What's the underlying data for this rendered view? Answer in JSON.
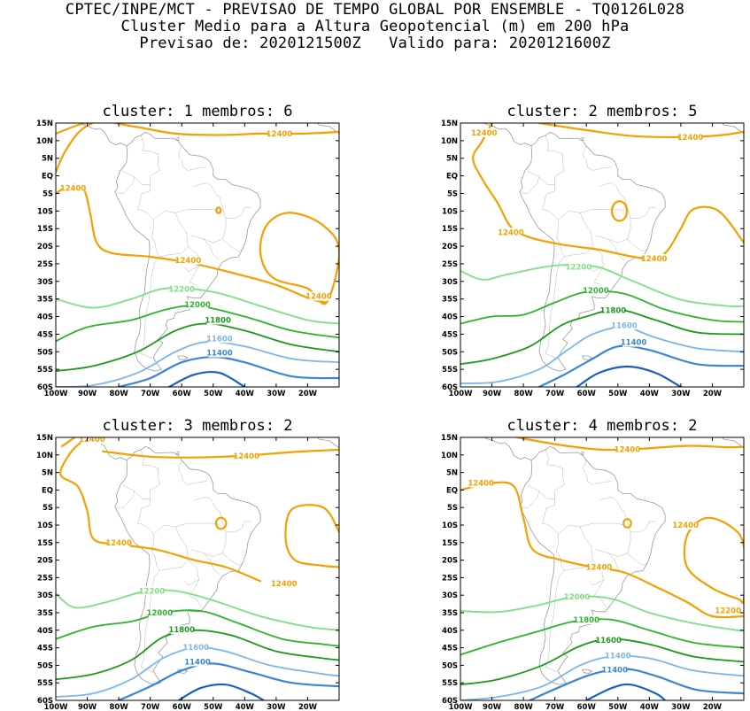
{
  "header": {
    "line1": "CPTEC/INPE/MCT - PREVISAO DE TEMPO GLOBAL POR ENSEMBLE - TQ0126L028",
    "line2": "Cluster Medio para a Altura Geopotencial (m) em 200 hPa",
    "line3": "Previsao de: 2020121500Z   Valido para: 2020121600Z"
  },
  "colors": {
    "12400": "#f5a000",
    "12200": "#7ee07e",
    "12000": "#2ab52a",
    "11800": "#1a9a1a",
    "11600": "#7ab6ee",
    "11400": "#3a86d6",
    "11200": "#1a5fc0"
  },
  "chart_data": [
    {
      "type": "contour",
      "title": "cluster: 1   membros: 6",
      "x_ticks": [
        "100W",
        "90W",
        "80W",
        "70W",
        "60W",
        "50W",
        "40W",
        "30W",
        "20W"
      ],
      "y_ticks": [
        "15N",
        "10N",
        "5N",
        "EQ",
        "5S",
        "10S",
        "15S",
        "20S",
        "25S",
        "30S",
        "35S",
        "40S",
        "45S",
        "50S",
        "55S",
        "60S"
      ],
      "xlim": [
        -100,
        -10
      ],
      "ylim": [
        -60,
        15
      ],
      "contour_labels": [
        "12400",
        "12400",
        "12400",
        "12400",
        "12200",
        "12000",
        "11800",
        "11600",
        "11400"
      ]
    },
    {
      "type": "contour",
      "title": "cluster: 2   membros: 5",
      "x_ticks": [
        "100W",
        "90W",
        "80W",
        "70W",
        "60W",
        "50W",
        "40W",
        "30W",
        "20W"
      ],
      "y_ticks": [
        "15N",
        "10N",
        "5N",
        "EQ",
        "5S",
        "10S",
        "15S",
        "20S",
        "25S",
        "30S",
        "35S",
        "40S",
        "45S",
        "50S",
        "55S",
        "60S"
      ],
      "xlim": [
        -100,
        -10
      ],
      "ylim": [
        -60,
        15
      ],
      "contour_labels": [
        "12400",
        "12400",
        "12400",
        "12400",
        "12200",
        "12000",
        "11800",
        "11600",
        "11400"
      ]
    },
    {
      "type": "contour",
      "title": "cluster: 3   membros: 2",
      "x_ticks": [
        "100W",
        "90W",
        "80W",
        "70W",
        "60W",
        "50W",
        "40W",
        "30W",
        "20W"
      ],
      "y_ticks": [
        "15N",
        "10N",
        "5N",
        "EQ",
        "5S",
        "10S",
        "15S",
        "20S",
        "25S",
        "30S",
        "35S",
        "40S",
        "45S",
        "50S",
        "55S",
        "60S"
      ],
      "xlim": [
        -100,
        -10
      ],
      "ylim": [
        -60,
        15
      ],
      "contour_labels": [
        "12400",
        "12400",
        "12400",
        "12400",
        "12200",
        "12000",
        "11800",
        "11600",
        "11400"
      ]
    },
    {
      "type": "contour",
      "title": "cluster: 4   membros: 2",
      "x_ticks": [
        "100W",
        "90W",
        "80W",
        "70W",
        "60W",
        "50W",
        "40W",
        "30W",
        "20W"
      ],
      "y_ticks": [
        "15N",
        "10N",
        "5N",
        "EQ",
        "5S",
        "10S",
        "15S",
        "20S",
        "25S",
        "30S",
        "35S",
        "40S",
        "45S",
        "50S",
        "55S",
        "60S"
      ],
      "xlim": [
        -100,
        -10
      ],
      "ylim": [
        -60,
        15
      ],
      "contour_labels": [
        "12400",
        "12400",
        "12400",
        "12400",
        "12200",
        "12000",
        "11800",
        "11600",
        "11400"
      ]
    }
  ]
}
